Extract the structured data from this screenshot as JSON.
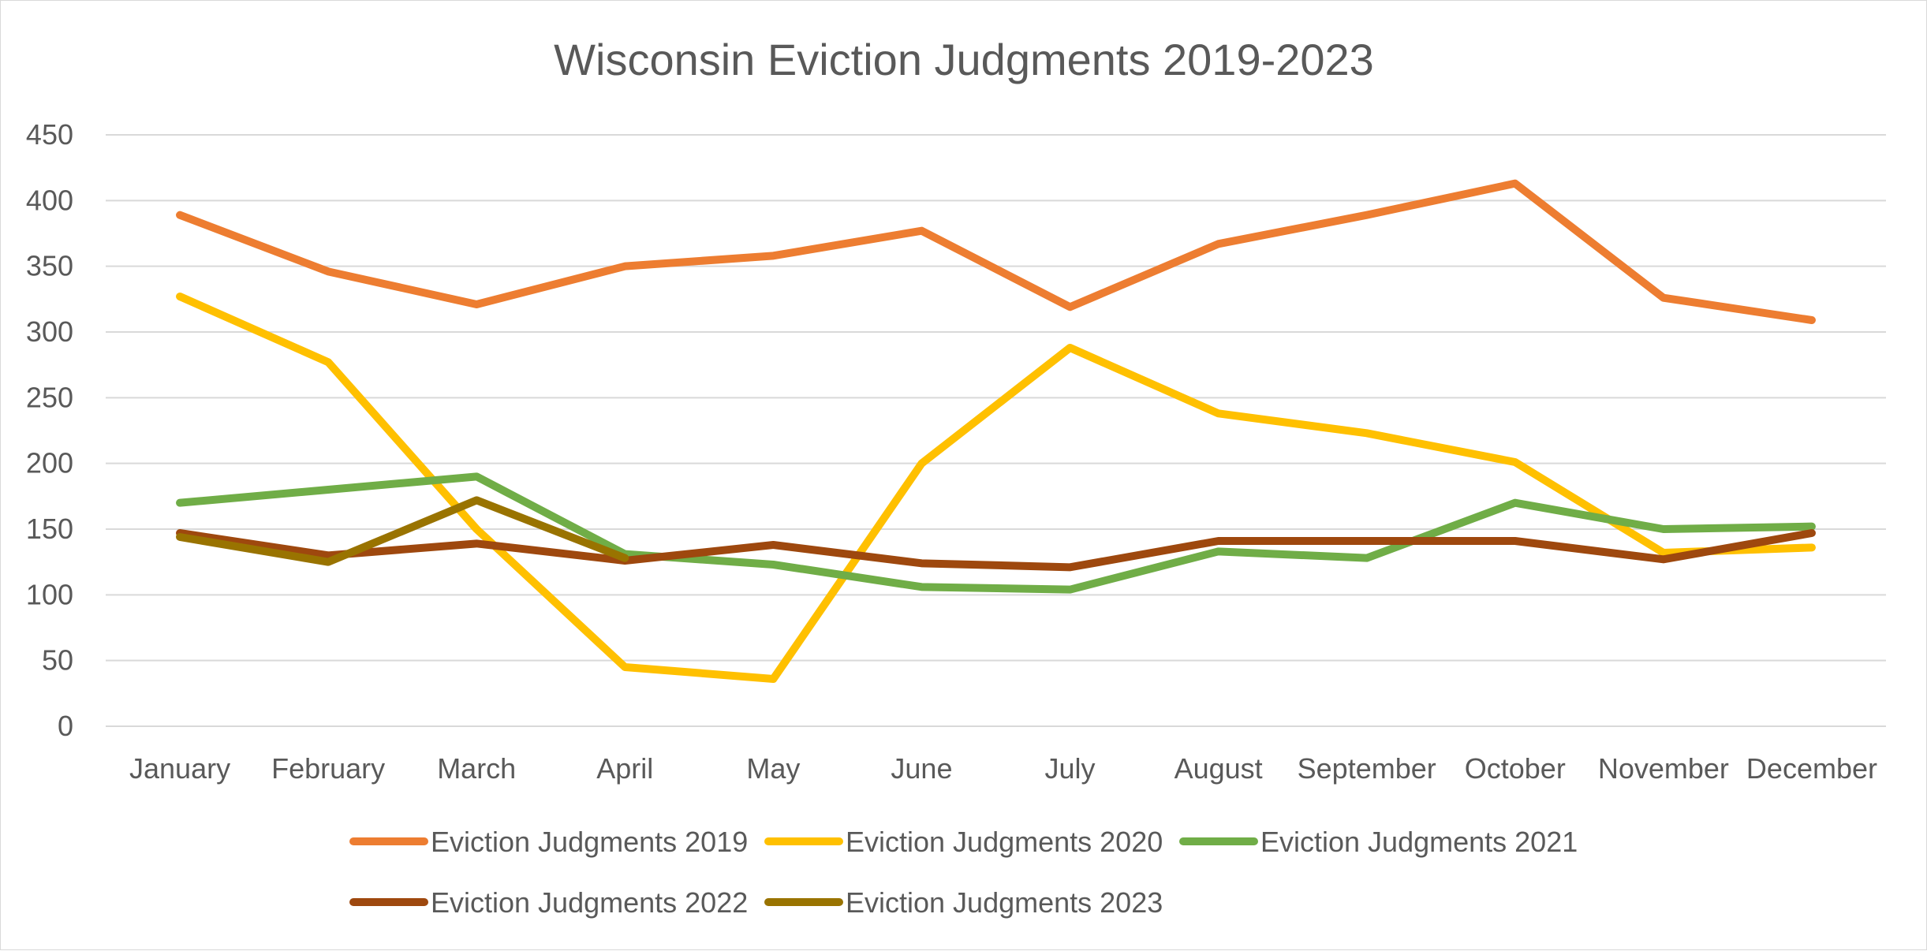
{
  "chart_data": {
    "type": "line",
    "title": "Wisconsin Eviction Judgments 2019-2023",
    "xlabel": "",
    "ylabel": "",
    "ylim": [
      0,
      450
    ],
    "yticks": [
      0,
      50,
      100,
      150,
      200,
      250,
      300,
      350,
      400,
      450
    ],
    "grid": true,
    "legend_position": "bottom",
    "categories": [
      "January",
      "February",
      "March",
      "April",
      "May",
      "June",
      "July",
      "August",
      "September",
      "October",
      "November",
      "December"
    ],
    "series": [
      {
        "name": "Eviction Judgments 2019",
        "color": "#ED7D31",
        "values": [
          389,
          346,
          321,
          350,
          358,
          377,
          319,
          367,
          389,
          413,
          326,
          309
        ]
      },
      {
        "name": "Eviction Judgments 2020",
        "color": "#FFC000",
        "values": [
          327,
          277,
          150,
          45,
          36,
          200,
          288,
          238,
          223,
          201,
          132,
          136
        ]
      },
      {
        "name": "Eviction Judgments 2021",
        "color": "#70AD47",
        "values": [
          170,
          180,
          190,
          131,
          123,
          106,
          104,
          133,
          128,
          170,
          150,
          152
        ]
      },
      {
        "name": "Eviction Judgments 2022",
        "color": "#9E480E",
        "values": [
          147,
          130,
          139,
          126,
          138,
          124,
          121,
          141,
          141,
          141,
          127,
          147
        ]
      },
      {
        "name": "Eviction Judgments 2023",
        "color": "#997300",
        "values": [
          144,
          125,
          172,
          128,
          null,
          null,
          null,
          null,
          null,
          null,
          null,
          null
        ]
      }
    ]
  }
}
